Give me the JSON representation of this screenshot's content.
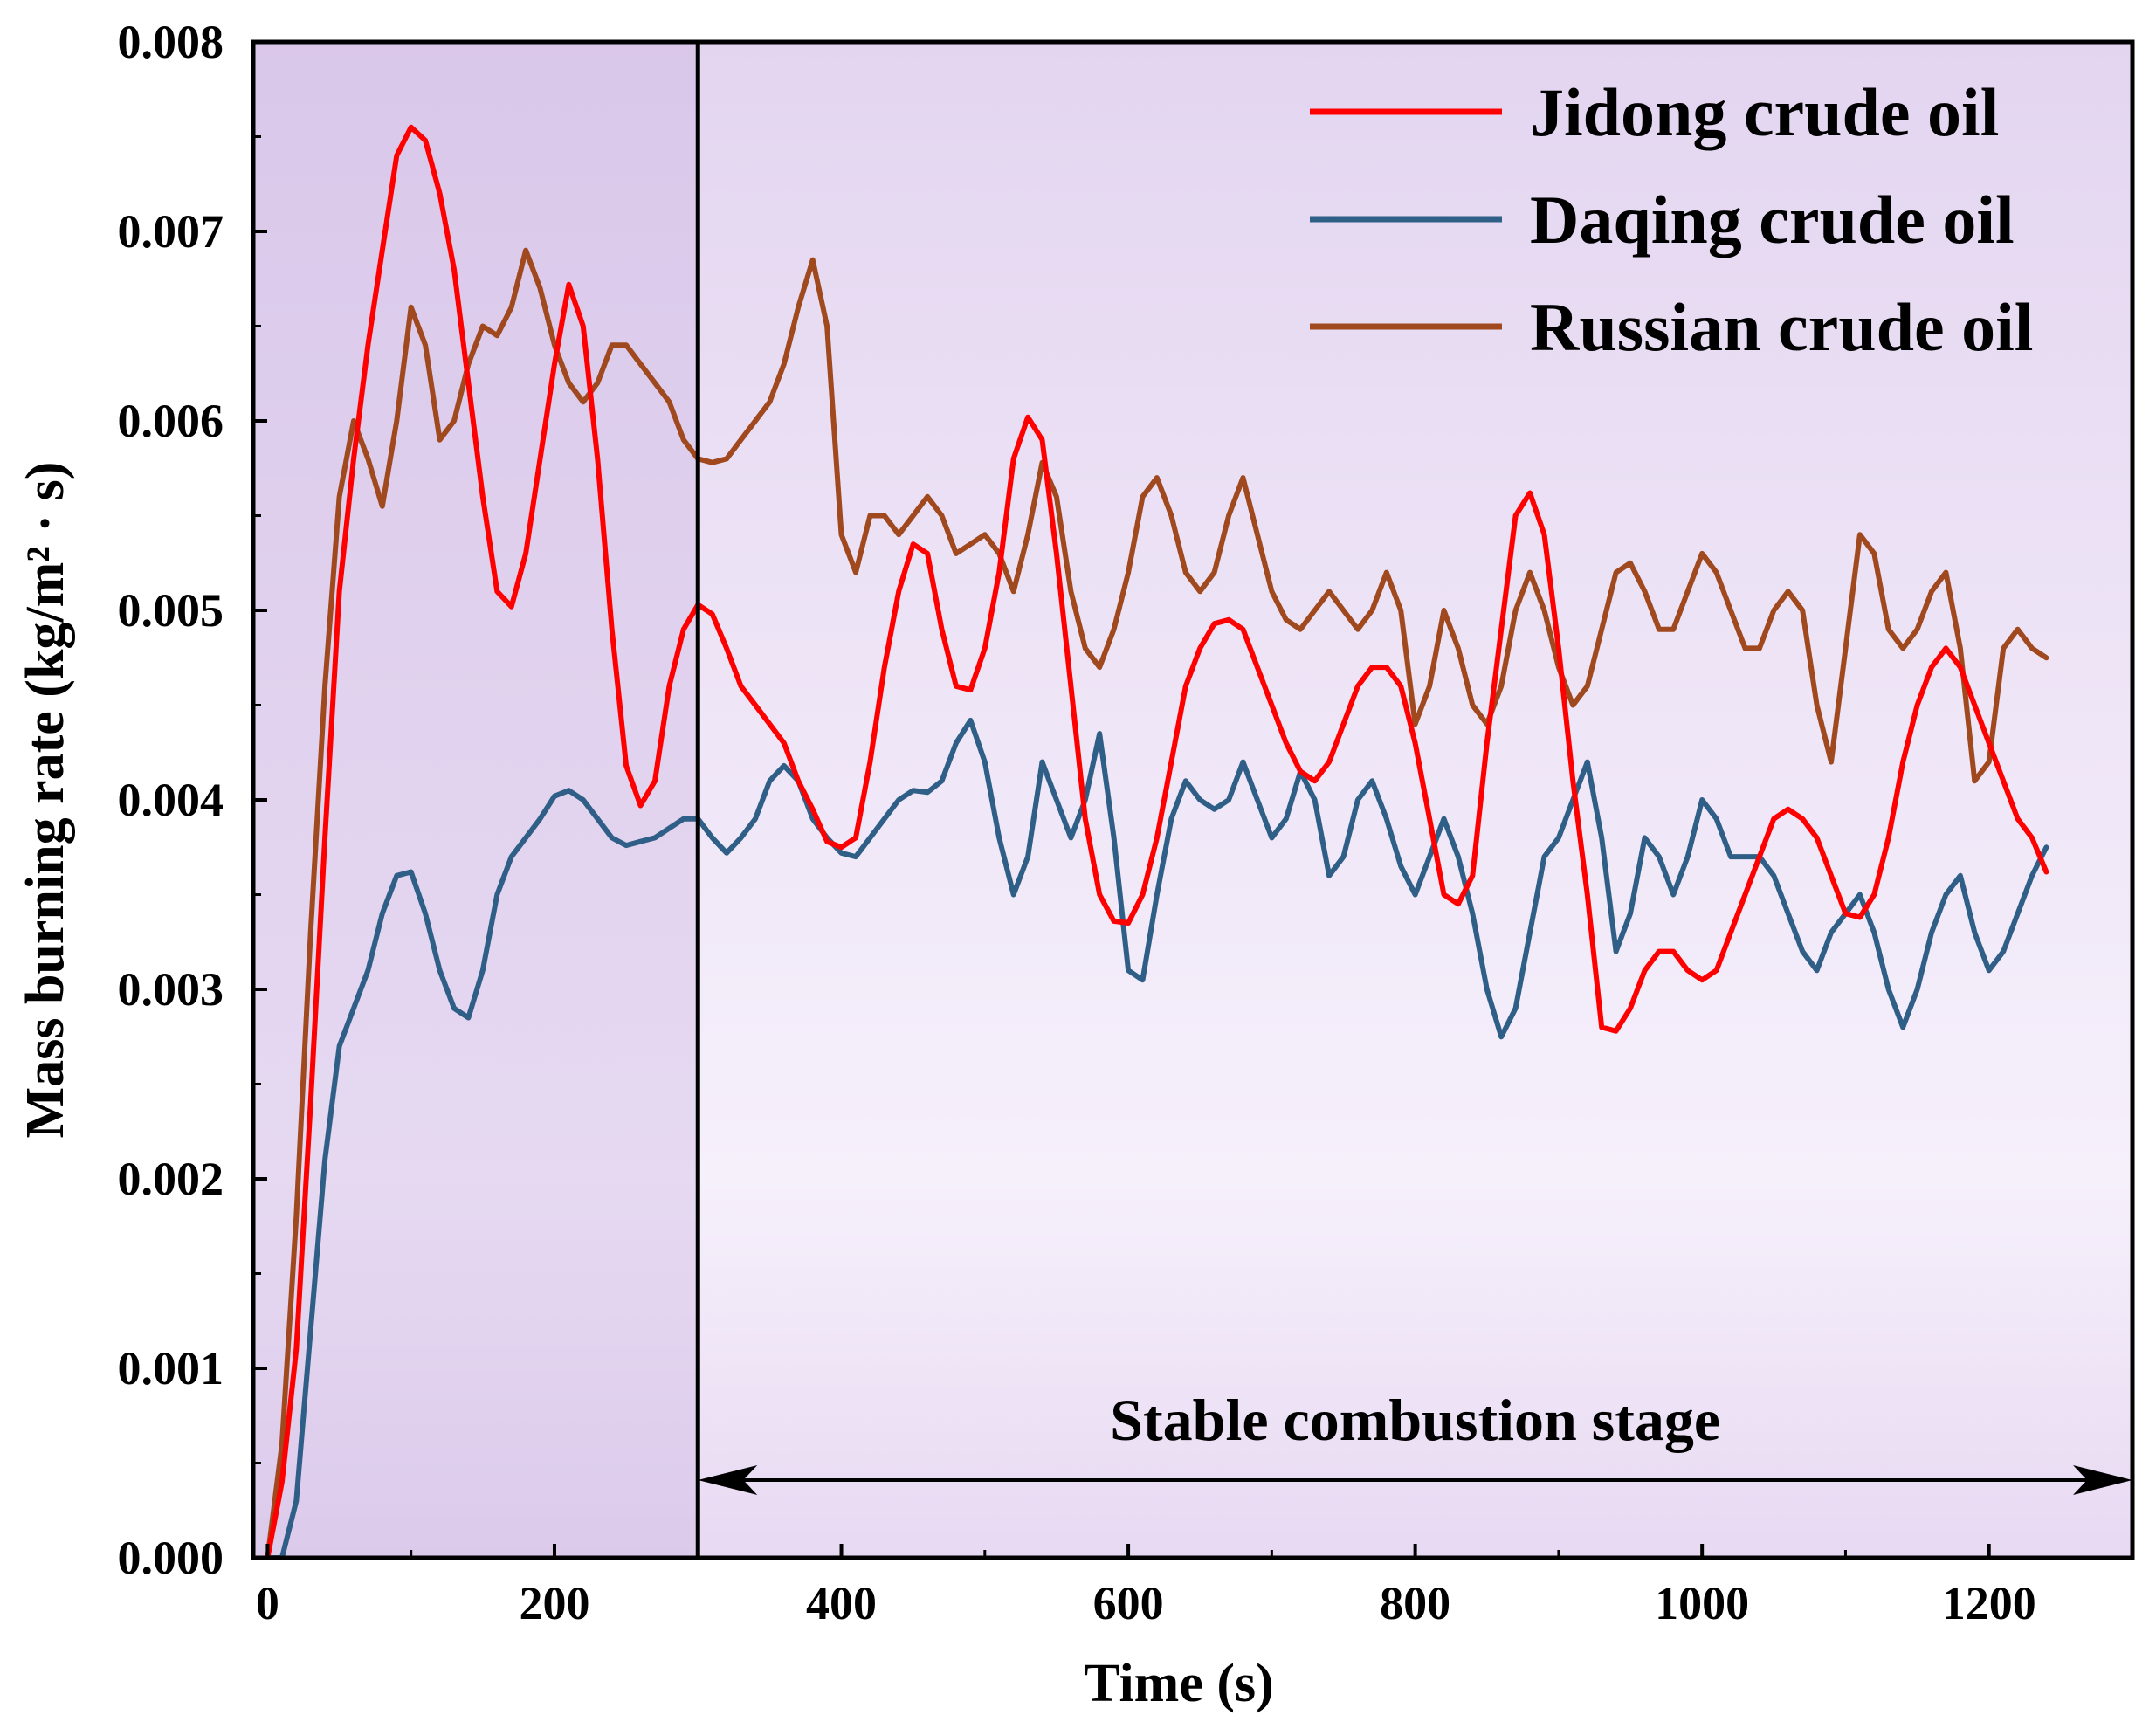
{
  "chart_data": {
    "type": "line",
    "title": "",
    "xlabel": "Time (s)",
    "ylabel": "Mass burning rate (kg/m² · s)",
    "xlim": [
      -10,
      1300
    ],
    "ylim": [
      0,
      0.008
    ],
    "x_ticks": [
      0,
      200,
      400,
      600,
      800,
      1000,
      1200
    ],
    "x_tick_labels": [
      "0",
      "200",
      "400",
      "600",
      "800",
      "1000",
      "1200"
    ],
    "y_ticks": [
      0,
      0.001,
      0.002,
      0.003,
      0.004,
      0.005,
      0.006,
      0.007,
      0.008
    ],
    "y_tick_labels": [
      "0.000",
      "0.001",
      "0.002",
      "0.003",
      "0.004",
      "0.005",
      "0.006",
      "0.007",
      "0.008"
    ],
    "grid": false,
    "legend_position": "top-right",
    "divider_x": 300,
    "annotation": {
      "text": "Stable combustion stage",
      "arrow_from": 300,
      "arrow_to": 1300,
      "arrow_y": 0.00041
    },
    "series": [
      {
        "name": "Jidong crude oil",
        "color": "#ff0000",
        "x": [
          0,
          10,
          20,
          30,
          40,
          50,
          60,
          70,
          80,
          90,
          100,
          110,
          120,
          130,
          140,
          150,
          160,
          170,
          180,
          190,
          200,
          210,
          220,
          230,
          240,
          250,
          260,
          270,
          280,
          290,
          300,
          310,
          320,
          330,
          340,
          350,
          360,
          370,
          380,
          390,
          400,
          410,
          420,
          430,
          440,
          450,
          460,
          470,
          480,
          490,
          500,
          510,
          520,
          530,
          540,
          550,
          560,
          570,
          580,
          590,
          600,
          610,
          620,
          630,
          640,
          650,
          660,
          670,
          680,
          690,
          700,
          710,
          720,
          730,
          740,
          750,
          760,
          770,
          780,
          790,
          800,
          810,
          820,
          830,
          840,
          850,
          860,
          870,
          880,
          890,
          900,
          910,
          920,
          930,
          940,
          950,
          960,
          970,
          980,
          990,
          1000,
          1010,
          1020,
          1030,
          1040,
          1050,
          1060,
          1070,
          1080,
          1090,
          1100,
          1110,
          1120,
          1130,
          1140,
          1150,
          1160,
          1170,
          1180,
          1190,
          1200,
          1210,
          1220,
          1230,
          1240
        ],
        "values": [
          0.0,
          0.0004,
          0.0011,
          0.0024,
          0.0038,
          0.0051,
          0.0058,
          0.0064,
          0.0069,
          0.0074,
          0.00755,
          0.00748,
          0.0072,
          0.0068,
          0.0062,
          0.0056,
          0.0051,
          0.00502,
          0.0053,
          0.0058,
          0.0063,
          0.00672,
          0.0065,
          0.0058,
          0.0049,
          0.00418,
          0.00397,
          0.0041,
          0.0046,
          0.0049,
          0.00503,
          0.00498,
          0.0048,
          0.0046,
          0.0045,
          0.0044,
          0.0043,
          0.0041,
          0.00395,
          0.00378,
          0.00375,
          0.0038,
          0.0042,
          0.0047,
          0.0051,
          0.00535,
          0.0053,
          0.0049,
          0.0046,
          0.00458,
          0.0048,
          0.0052,
          0.0058,
          0.00602,
          0.0059,
          0.0053,
          0.0046,
          0.0039,
          0.0035,
          0.00336,
          0.00335,
          0.0035,
          0.0038,
          0.0042,
          0.0046,
          0.0048,
          0.00493,
          0.00495,
          0.0049,
          0.0047,
          0.0045,
          0.0043,
          0.00415,
          0.0041,
          0.0042,
          0.0044,
          0.0046,
          0.0047,
          0.0047,
          0.0046,
          0.0043,
          0.0039,
          0.0035,
          0.00345,
          0.0036,
          0.0043,
          0.0049,
          0.0055,
          0.00562,
          0.0054,
          0.0048,
          0.0041,
          0.0035,
          0.0028,
          0.00278,
          0.0029,
          0.0031,
          0.0032,
          0.0032,
          0.0031,
          0.00305,
          0.0031,
          0.0033,
          0.0035,
          0.0037,
          0.0039,
          0.00395,
          0.0039,
          0.0038,
          0.0036,
          0.0034,
          0.00338,
          0.0035,
          0.0038,
          0.0042,
          0.0045,
          0.0047,
          0.0048,
          0.0047,
          0.0045,
          0.0043,
          0.0041,
          0.0039,
          0.0038,
          0.00362
        ]
      },
      {
        "name": "Daqing crude oil",
        "color": "#2f5f87",
        "x": [
          0,
          10,
          20,
          30,
          40,
          50,
          60,
          70,
          80,
          90,
          100,
          110,
          120,
          130,
          140,
          150,
          160,
          170,
          180,
          190,
          200,
          210,
          220,
          230,
          240,
          250,
          260,
          270,
          280,
          290,
          300,
          310,
          320,
          330,
          340,
          350,
          360,
          370,
          380,
          390,
          400,
          410,
          420,
          430,
          440,
          450,
          460,
          470,
          480,
          490,
          500,
          510,
          520,
          530,
          540,
          550,
          560,
          570,
          580,
          590,
          600,
          610,
          620,
          630,
          640,
          650,
          660,
          670,
          680,
          690,
          700,
          710,
          720,
          730,
          740,
          750,
          760,
          770,
          780,
          790,
          800,
          810,
          820,
          830,
          840,
          850,
          860,
          870,
          880,
          890,
          900,
          910,
          920,
          930,
          940,
          950,
          960,
          970,
          980,
          990,
          1000,
          1010,
          1020,
          1030,
          1040,
          1050,
          1060,
          1070,
          1080,
          1090,
          1100,
          1110,
          1120,
          1130,
          1140,
          1150,
          1160,
          1170,
          1180,
          1190,
          1200,
          1210,
          1220,
          1230,
          1240
        ],
        "values": [
          0.0,
          0.0,
          0.0003,
          0.0012,
          0.0021,
          0.0027,
          0.0029,
          0.0031,
          0.0034,
          0.0036,
          0.00362,
          0.0034,
          0.0031,
          0.0029,
          0.00285,
          0.0031,
          0.0035,
          0.0037,
          0.0038,
          0.0039,
          0.00402,
          0.00405,
          0.004,
          0.0039,
          0.0038,
          0.00376,
          0.00378,
          0.0038,
          0.00385,
          0.0039,
          0.0039,
          0.0038,
          0.00372,
          0.0038,
          0.0039,
          0.0041,
          0.00418,
          0.0041,
          0.0039,
          0.0038,
          0.00372,
          0.0037,
          0.0038,
          0.0039,
          0.004,
          0.00405,
          0.00404,
          0.0041,
          0.0043,
          0.00442,
          0.0042,
          0.0038,
          0.0035,
          0.0037,
          0.0042,
          0.004,
          0.0038,
          0.004,
          0.00435,
          0.0038,
          0.0031,
          0.00305,
          0.0035,
          0.0039,
          0.0041,
          0.004,
          0.00395,
          0.004,
          0.0042,
          0.004,
          0.0038,
          0.0039,
          0.00415,
          0.004,
          0.0036,
          0.0037,
          0.004,
          0.0041,
          0.0039,
          0.00365,
          0.0035,
          0.0037,
          0.0039,
          0.0037,
          0.0034,
          0.003,
          0.00275,
          0.0029,
          0.0033,
          0.0037,
          0.0038,
          0.004,
          0.0042,
          0.0038,
          0.0032,
          0.0034,
          0.0038,
          0.0037,
          0.0035,
          0.0037,
          0.004,
          0.0039,
          0.0037,
          0.0037,
          0.0037,
          0.0036,
          0.0034,
          0.0032,
          0.0031,
          0.0033,
          0.0034,
          0.0035,
          0.0033,
          0.003,
          0.0028,
          0.003,
          0.0033,
          0.0035,
          0.0036,
          0.0033,
          0.0031,
          0.0032,
          0.0034,
          0.0036,
          0.00375
        ]
      },
      {
        "name": "Russian crude oil",
        "color": "#a0481e",
        "x": [
          0,
          10,
          20,
          30,
          40,
          50,
          60,
          70,
          80,
          90,
          100,
          110,
          120,
          130,
          140,
          150,
          160,
          170,
          180,
          190,
          200,
          210,
          220,
          230,
          240,
          250,
          260,
          270,
          280,
          290,
          300,
          310,
          320,
          330,
          340,
          350,
          360,
          370,
          380,
          390,
          400,
          410,
          420,
          430,
          440,
          450,
          460,
          470,
          480,
          490,
          500,
          510,
          520,
          530,
          540,
          550,
          560,
          570,
          580,
          590,
          600,
          610,
          620,
          630,
          640,
          650,
          660,
          670,
          680,
          690,
          700,
          710,
          720,
          730,
          740,
          750,
          760,
          770,
          780,
          790,
          800,
          810,
          820,
          830,
          840,
          850,
          860,
          870,
          880,
          890,
          900,
          910,
          920,
          930,
          940,
          950,
          960,
          970,
          980,
          990,
          1000,
          1010,
          1020,
          1030,
          1040,
          1050,
          1060,
          1070,
          1080,
          1090,
          1100,
          1110,
          1120,
          1130,
          1140,
          1150,
          1160,
          1170,
          1180,
          1190,
          1200,
          1210,
          1220,
          1230,
          1240
        ],
        "values": [
          0.0,
          0.0006,
          0.0018,
          0.0033,
          0.0046,
          0.0056,
          0.006,
          0.0058,
          0.00555,
          0.006,
          0.0066,
          0.0064,
          0.0059,
          0.006,
          0.0063,
          0.0065,
          0.00645,
          0.0066,
          0.0069,
          0.0067,
          0.0064,
          0.0062,
          0.0061,
          0.0062,
          0.0064,
          0.0064,
          0.0063,
          0.0062,
          0.0061,
          0.0059,
          0.0058,
          0.00578,
          0.0058,
          0.0059,
          0.006,
          0.0061,
          0.0063,
          0.0066,
          0.00685,
          0.0065,
          0.0054,
          0.0052,
          0.0055,
          0.0055,
          0.0054,
          0.0055,
          0.0056,
          0.0055,
          0.0053,
          0.00535,
          0.0054,
          0.0053,
          0.0051,
          0.0054,
          0.00578,
          0.0056,
          0.0051,
          0.0048,
          0.0047,
          0.0049,
          0.0052,
          0.0056,
          0.0057,
          0.0055,
          0.0052,
          0.0051,
          0.0052,
          0.0055,
          0.0057,
          0.0054,
          0.0051,
          0.00495,
          0.0049,
          0.005,
          0.0051,
          0.005,
          0.0049,
          0.005,
          0.0052,
          0.005,
          0.0044,
          0.0046,
          0.005,
          0.0048,
          0.0045,
          0.0044,
          0.0046,
          0.005,
          0.0052,
          0.005,
          0.0047,
          0.0045,
          0.0046,
          0.0049,
          0.0052,
          0.00525,
          0.0051,
          0.0049,
          0.0049,
          0.0051,
          0.0053,
          0.0052,
          0.005,
          0.0048,
          0.0048,
          0.005,
          0.0051,
          0.005,
          0.0045,
          0.0042,
          0.0048,
          0.0054,
          0.0053,
          0.0049,
          0.0048,
          0.0049,
          0.0051,
          0.0052,
          0.0048,
          0.0041,
          0.0042,
          0.0048,
          0.0049,
          0.0048,
          0.00475
        ]
      }
    ]
  }
}
